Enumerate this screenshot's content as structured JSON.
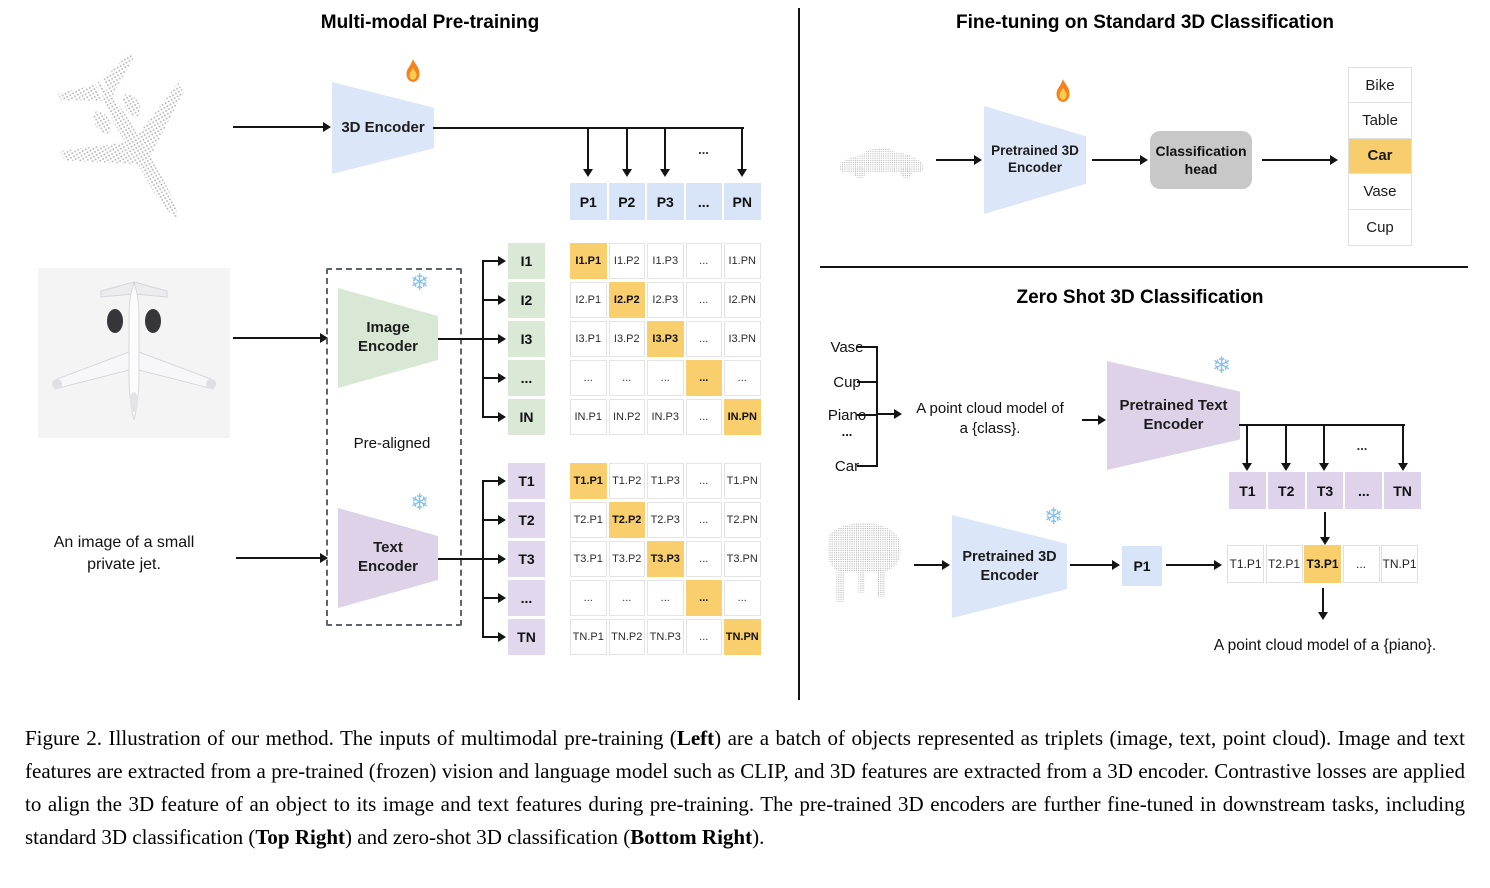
{
  "icons": {
    "snowflake": "❄",
    "flame": "flame-icon",
    "dots": "..."
  },
  "colors": {
    "blue": "#d8e4f7",
    "green": "#dae8d6",
    "purple": "#ded3ea",
    "orange": "#f9ce6d",
    "head_gray": "#c8c8c8"
  },
  "pretraining": {
    "title": "Multi-modal Pre-training",
    "encoder_3d_label": "3D Encoder",
    "image_encoder_label": "Image\nEncoder",
    "text_encoder_label": "Text\nEncoder",
    "pre_aligned_label": "Pre-aligned",
    "input_text": "An image of a small\nprivate jet.",
    "p_row": [
      "P1",
      "P2",
      "P3",
      "...",
      "PN"
    ],
    "i_labels": [
      "I1",
      "I2",
      "I3",
      "...",
      "IN"
    ],
    "t_labels": [
      "T1",
      "T2",
      "T3",
      "...",
      "TN"
    ],
    "i_matrix": [
      {
        "t": "I1.P1",
        "hl": true
      },
      "I1.P2",
      "I1.P3",
      "...",
      "I1.PN",
      "I2.P1",
      {
        "t": "I2.P2",
        "hl": true
      },
      "I2.P3",
      "...",
      "I2.PN",
      "I3.P1",
      "I3.P2",
      {
        "t": "I3.P3",
        "hl": true
      },
      "...",
      "I3.PN",
      "...",
      "...",
      "...",
      {
        "t": "...",
        "hl": true
      },
      "...",
      "IN.P1",
      "IN.P2",
      "IN.P3",
      "...",
      {
        "t": "IN.PN",
        "hl": true
      }
    ],
    "t_matrix": [
      {
        "t": "T1.P1",
        "hl": true
      },
      "T1.P2",
      "T1.P3",
      "...",
      "T1.PN",
      "T2.P1",
      {
        "t": "T2.P2",
        "hl": true
      },
      "T2.P3",
      "...",
      "T2.PN",
      "T3.P1",
      "T3.P2",
      {
        "t": "T3.P3",
        "hl": true
      },
      "...",
      "T3.PN",
      "...",
      "...",
      "...",
      {
        "t": "...",
        "hl": true
      },
      "...",
      "TN.P1",
      "TN.P2",
      "TN.P3",
      "...",
      {
        "t": "TN.PN",
        "hl": true
      }
    ]
  },
  "finetune": {
    "title": "Fine-tuning on Standard 3D Classification",
    "encoder_label": "Pretrained 3D\nEncoder",
    "head_label": "Classification\nhead",
    "classes": [
      "Bike",
      "Table",
      {
        "t": "Car",
        "hl": true
      },
      "Vase",
      "Cup"
    ]
  },
  "zero_shot": {
    "title": "Zero Shot 3D Classification",
    "classes": [
      "Vase",
      "Cup",
      "Piano",
      "...",
      "Car"
    ],
    "prompt": "A point cloud model of\na {class}.",
    "text_encoder_label": "Pretrained Text\nEncoder",
    "encoder_3d_label": "Pretrained 3D\nEncoder",
    "t_row": [
      "T1",
      "T2",
      "T3",
      "...",
      "TN"
    ],
    "p1": "P1",
    "match_row": [
      "T1.P1",
      "T2.P1",
      {
        "t": "T3.P1",
        "hl": true
      },
      "...",
      "TN.P1"
    ],
    "result": "A point cloud model of a {piano}."
  },
  "caption": {
    "segments": [
      {
        "t": "Figure 2. Illustration of our method. The inputs of multimodal pre-training ("
      },
      {
        "t": "Left",
        "b": true
      },
      {
        "t": ") are a batch of objects represented as triplets (image, text, point cloud). Image and text features are extracted from a pre-trained (frozen) vision and language model such as CLIP, and 3D features are extracted from a 3D encoder. Contrastive losses are applied to align the 3D feature of an object to its image and text features during pre-training. The pre-trained 3D encoders are further fine-tuned in downstream tasks, including standard 3D classification ("
      },
      {
        "t": "Top Right",
        "b": true
      },
      {
        "t": ") and zero-shot 3D classification ("
      },
      {
        "t": "Bottom Right",
        "b": true
      },
      {
        "t": ")."
      }
    ]
  }
}
